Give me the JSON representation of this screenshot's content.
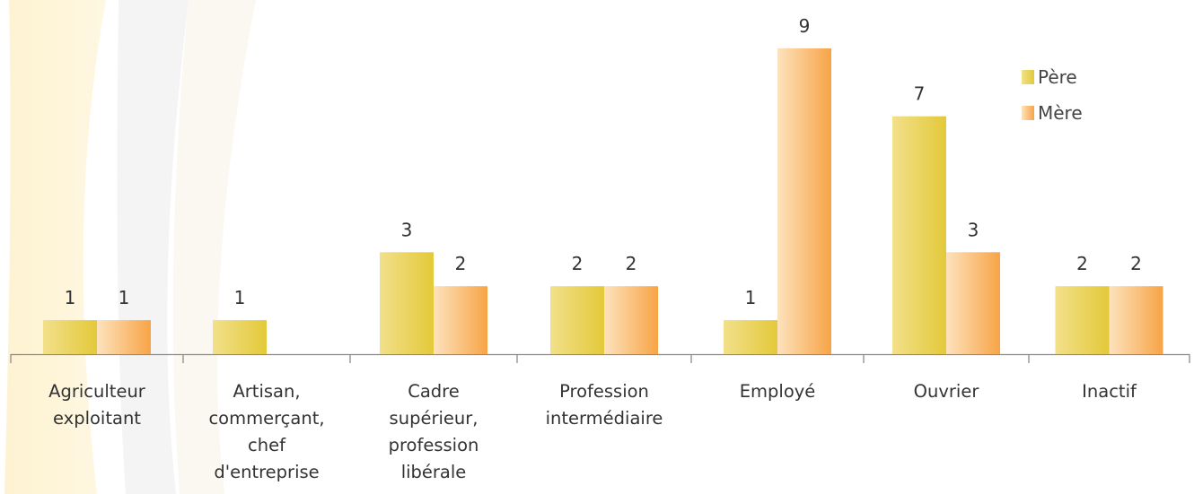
{
  "chart_data": {
    "type": "bar",
    "categories": [
      [
        "Agriculteur",
        "exploitant"
      ],
      [
        "Artisan,",
        "commerçant,",
        "chef",
        "d'entreprise"
      ],
      [
        "Cadre",
        "supérieur,",
        "profession",
        "libérale"
      ],
      [
        "Profession",
        "intermédiaire"
      ],
      [
        "Employé"
      ],
      [
        "Ouvrier"
      ],
      [
        "Inactif"
      ]
    ],
    "series": [
      {
        "name": "Père",
        "values": [
          1,
          1,
          3,
          2,
          1,
          7,
          2
        ],
        "color": "#e6cf3a"
      },
      {
        "name": "Mère",
        "values": [
          1,
          null,
          2,
          2,
          9,
          3,
          2
        ],
        "color": "#f7a74a"
      }
    ],
    "ylim": [
      0,
      9
    ],
    "grid": false,
    "legend_position": "top-right",
    "data_labels": true
  }
}
